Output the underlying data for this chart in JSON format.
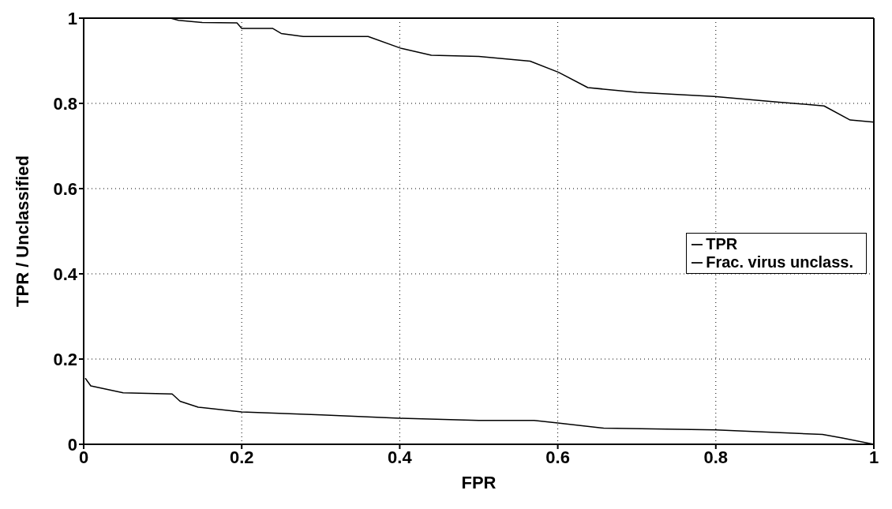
{
  "chart_data": {
    "type": "line",
    "xlabel": "FPR",
    "ylabel": "TPR / Unclassified",
    "xlim": [
      0,
      1
    ],
    "ylim": [
      0,
      1
    ],
    "xticks": [
      0,
      0.2,
      0.4,
      0.6,
      0.8,
      1
    ],
    "yticks": [
      0,
      0.2,
      0.4,
      0.6,
      0.8,
      1
    ],
    "grid": true,
    "legend": "right",
    "line_style": "solid",
    "marker": "none",
    "series": [
      {
        "name": "TPR",
        "color": "#000000",
        "x": [
          0,
          0.11,
          0.12,
          0.15,
          0.194,
          0.2,
          0.239,
          0.25,
          0.278,
          0.36,
          0.402,
          0.44,
          0.5,
          0.565,
          0.601,
          0.638,
          0.7,
          0.798,
          0.88,
          0.937,
          0.97,
          1
        ],
        "values": [
          1,
          1,
          0.995,
          0.99,
          0.989,
          0.976,
          0.976,
          0.964,
          0.957,
          0.957,
          0.929,
          0.913,
          0.91,
          0.899,
          0.873,
          0.837,
          0.826,
          0.816,
          0.803,
          0.794,
          0.761,
          0.756
        ]
      },
      {
        "name": "Frac. virus unclass.",
        "color": "#000000",
        "x": [
          0.002,
          0.009,
          0.05,
          0.112,
          0.122,
          0.145,
          0.2,
          0.301,
          0.4,
          0.5,
          0.57,
          0.6,
          0.658,
          0.8,
          0.935,
          0.96,
          1
        ],
        "values": [
          0.155,
          0.137,
          0.121,
          0.118,
          0.101,
          0.087,
          0.076,
          0.069,
          0.061,
          0.056,
          0.056,
          0.05,
          0.038,
          0.034,
          0.023,
          0.015,
          0
        ]
      }
    ]
  }
}
